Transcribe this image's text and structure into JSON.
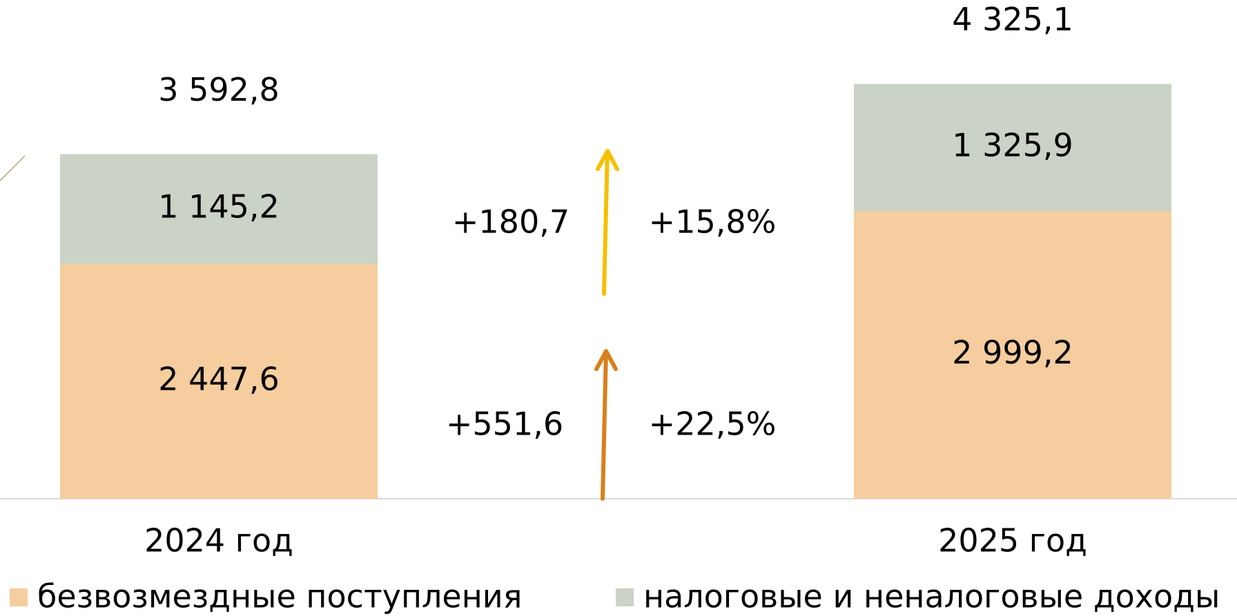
{
  "chart_data": {
    "type": "stacked_bar",
    "categories": [
      "2024 год",
      "2025 год"
    ],
    "series": [
      {
        "name": "безвозмездные поступления",
        "color": "#f6cd9e",
        "values": [
          2447.6,
          2999.2
        ],
        "value_labels": [
          "2 447,6",
          "2 999,2"
        ]
      },
      {
        "name": "налоговые и неналоговые доходы",
        "color": "#cbd2c6",
        "values": [
          1145.2,
          1325.9
        ],
        "value_labels": [
          "1 145,2",
          "1 325,9"
        ]
      }
    ],
    "totals": [
      3592.8,
      4325.1
    ],
    "total_labels": [
      "3 592,8",
      "4 325,1"
    ],
    "changes": [
      {
        "series": 1,
        "value": 180.7,
        "label": "+180,7",
        "percent": 15.8,
        "percent_label": "+15,8%",
        "color": "#f5c000"
      },
      {
        "series": 0,
        "value": 551.6,
        "label": "+551,6",
        "percent": 22.5,
        "percent_label": "+22,5%",
        "color": "#d9801a"
      }
    ],
    "ylim": [
      0,
      5200
    ],
    "legend": "bottom"
  }
}
